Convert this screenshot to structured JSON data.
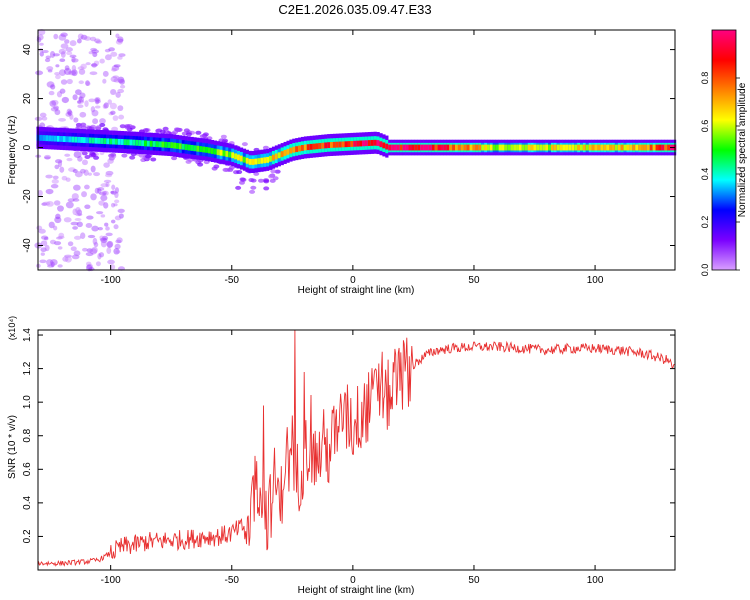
{
  "page": {
    "title": "C2E1.2026.035.09.47.E33"
  },
  "colorbar": {
    "label": "Normalized spectral amplitude",
    "ticks": [
      "0.0",
      "0.2",
      "0.4",
      "0.6",
      "0.8"
    ],
    "colors": [
      "#d9a0ff",
      "#7a00ff",
      "#0000ff",
      "#00ffff",
      "#00ff00",
      "#ffff00",
      "#ff8000",
      "#ff0000",
      "#ff0080"
    ]
  },
  "chart_data": [
    {
      "type": "heatmap",
      "title": "",
      "xlabel": "Height of straight line (km)",
      "ylabel": "Frequency (Hz)",
      "xlim": [
        -130,
        133
      ],
      "ylim": [
        -50,
        48
      ],
      "xticks": [
        -100,
        -50,
        0,
        50,
        100
      ],
      "yticks": [
        40,
        20,
        0,
        -20,
        -40
      ],
      "colormap": "rainbow",
      "zlim": [
        0,
        1
      ],
      "ridge": {
        "x": [
          -130,
          -110,
          -90,
          -75,
          -60,
          -50,
          -42,
          -35,
          -30,
          -25,
          -20,
          -10,
          0,
          10,
          15,
          30,
          60,
          90,
          120,
          133
        ],
        "frequency": [
          4,
          3,
          2,
          1,
          -1,
          -3,
          -6,
          -5,
          -3,
          -1,
          0,
          1,
          1.5,
          2,
          0,
          0,
          0,
          0,
          0,
          0
        ],
        "amplitude": [
          0.3,
          0.4,
          0.45,
          0.5,
          0.55,
          0.6,
          0.6,
          0.65,
          0.7,
          0.75,
          0.8,
          0.85,
          0.9,
          0.95,
          0.95,
          0.95,
          0.6,
          0.65,
          0.7,
          0.95
        ]
      },
      "grid": false
    },
    {
      "type": "line",
      "title": "",
      "xlabel": "Height of straight line (km)",
      "ylabel": "SNR (10 * v/v)",
      "y_multiplier": "(x10⁴)",
      "xlim": [
        -130,
        133
      ],
      "ylim": [
        0,
        1.43
      ],
      "xticks": [
        -100,
        -50,
        0,
        50,
        100
      ],
      "yticks": [
        "0.2",
        "0.4",
        "0.6",
        "0.8",
        "1.0",
        "1.2",
        "1.4"
      ],
      "series": [
        {
          "color": "#e83030",
          "x": [
            -130,
            -120,
            -110,
            -105,
            -100,
            -95,
            -90,
            -85,
            -80,
            -75,
            -70,
            -65,
            -60,
            -55,
            -50,
            -45,
            -42,
            -40,
            -38,
            -35,
            -32,
            -30,
            -28,
            -25,
            -22,
            -20,
            -18,
            -15,
            -12,
            -10,
            -8,
            -5,
            -2,
            0,
            2,
            5,
            8,
            10,
            12,
            15,
            18,
            20,
            25,
            30,
            35,
            40,
            50,
            60,
            70,
            80,
            90,
            100,
            110,
            120,
            125,
            130,
            133
          ],
          "y": [
            0.04,
            0.04,
            0.05,
            0.06,
            0.1,
            0.14,
            0.15,
            0.17,
            0.17,
            0.18,
            0.18,
            0.19,
            0.2,
            0.2,
            0.22,
            0.26,
            0.35,
            0.55,
            0.5,
            0.3,
            0.55,
            0.35,
            0.7,
            0.6,
            0.55,
            0.7,
            0.75,
            0.65,
            0.75,
            0.7,
            0.8,
            0.8,
            0.9,
            0.85,
            0.9,
            0.95,
            1.0,
            1.05,
            0.95,
            1.05,
            1.1,
            1.15,
            1.22,
            1.28,
            1.31,
            1.32,
            1.33,
            1.33,
            1.32,
            1.31,
            1.32,
            1.32,
            1.31,
            1.29,
            1.27,
            1.25,
            1.2
          ],
          "spikes": [
            {
              "x": -24,
              "y": 1.43
            },
            {
              "x": -37,
              "y": 0.98
            },
            {
              "x": -20,
              "y": 1.18
            },
            {
              "x": 12,
              "y": 1.3
            },
            {
              "x": 10,
              "y": 1.1
            },
            {
              "x": -5,
              "y": 1.05
            }
          ]
        }
      ],
      "grid": false
    }
  ]
}
